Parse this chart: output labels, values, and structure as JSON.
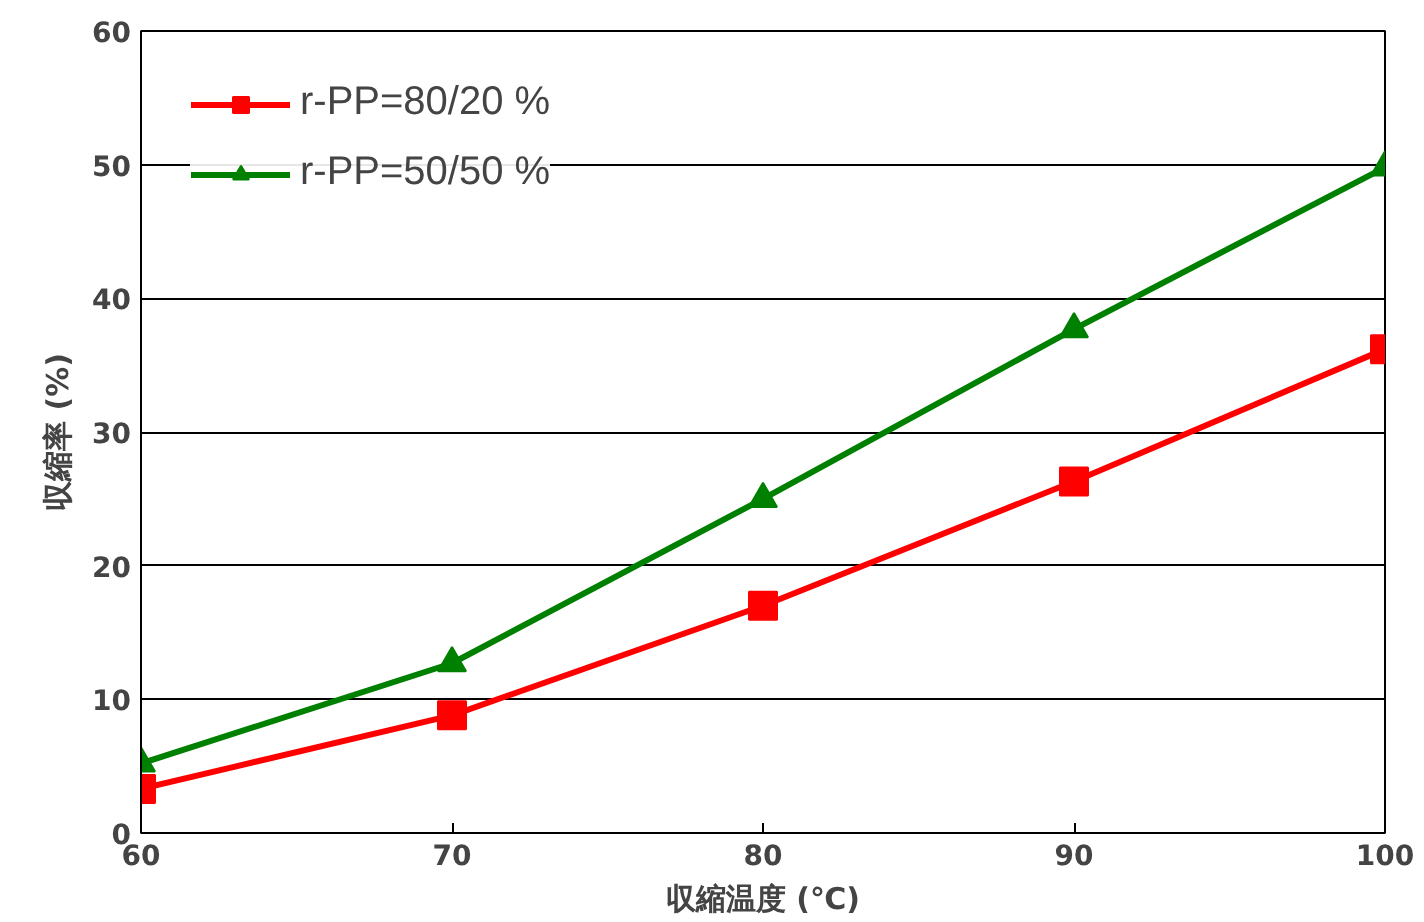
{
  "chart_data": {
    "type": "line",
    "xlabel": "収縮温度 (℃)",
    "ylabel": "収縮率 (%)",
    "x": [
      60,
      70,
      80,
      90,
      100
    ],
    "series": [
      {
        "name": "r-PP=80/20 %",
        "color": "#ff0000",
        "marker": "square",
        "values": [
          3.3,
          8.8,
          17,
          26.3,
          36.2
        ]
      },
      {
        "name": "r-PP=50/50 %",
        "color": "#008000",
        "marker": "triangle",
        "values": [
          5.2,
          12.7,
          25,
          37.7,
          49.8
        ]
      }
    ],
    "xlim": [
      60,
      100
    ],
    "xticks": [
      60,
      70,
      80,
      90,
      100
    ],
    "ylim": [
      0,
      60
    ],
    "yticks": [
      0,
      10,
      20,
      30,
      40,
      50,
      60
    ],
    "grid": "y",
    "legend": "top left",
    "line_style": "solid"
  }
}
